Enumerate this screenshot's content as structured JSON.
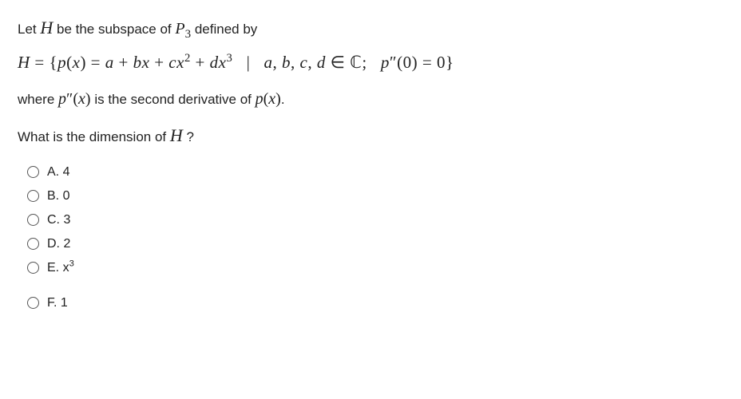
{
  "problem": {
    "line1_a": "Let  ",
    "line1_H": "H",
    "line1_b": "  be  the subspace of  ",
    "line1_P": "P",
    "line1_P_sub": "3",
    "line1_c": "  defined by",
    "equation": "H = {p(x) = a + bx + cx² + dx³ | a, b, c, d ∈ ℂ;  p″(0) = 0}",
    "line3_a": "where  ",
    "line3_pprime": "p″(x)",
    "line3_b": "   is the second derivative of  ",
    "line3_px": "p(x)",
    "line3_c": ".",
    "question_a": "What is the dimension of  ",
    "question_H": "H",
    "question_b": " ?"
  },
  "options": [
    {
      "label": "A. 4"
    },
    {
      "label": "B. 0"
    },
    {
      "label": "C. 3"
    },
    {
      "label": "D. 2"
    },
    {
      "label": "E. x³",
      "is_math_sup": true,
      "base": "E. x",
      "sup": "3"
    },
    {
      "label": "F. 1",
      "extra_margin": true
    }
  ]
}
